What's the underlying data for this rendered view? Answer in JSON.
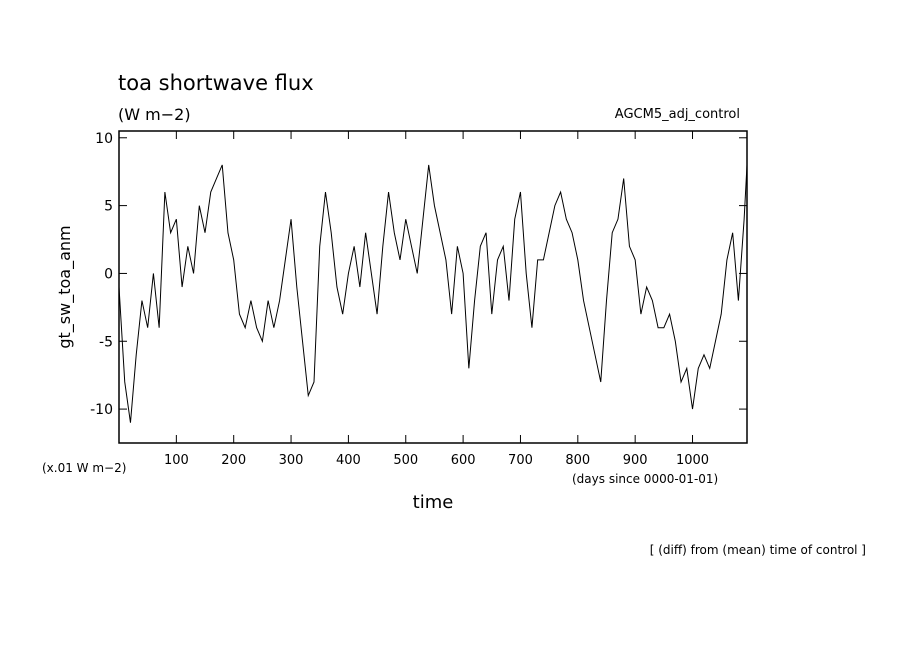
{
  "chart_data": {
    "type": "line",
    "title": "toa shortwave flux",
    "subtitle": "(W m−2)",
    "run_label": "AGCM5_adj_control",
    "y_label": "gt_sw_toa_anm",
    "y_units": "(x.01 W m−2)",
    "x_label": "time",
    "x_units": "(days since 0000-01-01)",
    "footer": "[ (diff) from (mean) time of control ]",
    "x": [
      0,
      10,
      20,
      30,
      40,
      50,
      60,
      70,
      80,
      90,
      100,
      110,
      120,
      130,
      140,
      150,
      160,
      170,
      180,
      190,
      200,
      210,
      220,
      230,
      240,
      250,
      260,
      270,
      280,
      290,
      300,
      310,
      320,
      330,
      340,
      350,
      360,
      370,
      380,
      390,
      400,
      410,
      420,
      430,
      440,
      450,
      460,
      470,
      480,
      490,
      500,
      510,
      520,
      530,
      540,
      550,
      560,
      570,
      580,
      590,
      600,
      610,
      620,
      630,
      640,
      650,
      660,
      670,
      680,
      690,
      700,
      710,
      720,
      730,
      740,
      750,
      760,
      770,
      780,
      790,
      800,
      810,
      820,
      830,
      840,
      850,
      860,
      870,
      880,
      890,
      900,
      910,
      920,
      930,
      940,
      950,
      960,
      970,
      980,
      990,
      1000,
      1010,
      1020,
      1030,
      1040,
      1050,
      1060,
      1070,
      1080,
      1090,
      1095
    ],
    "series": [
      {
        "name": "gt_sw_toa_anm",
        "color": "#000000",
        "values": [
          -1,
          -8,
          -11,
          -6,
          -2,
          -4,
          0,
          -4,
          6,
          3,
          4,
          -1,
          2,
          0,
          5,
          3,
          6,
          7,
          8,
          3,
          1,
          -3,
          -4,
          -2,
          -4,
          -5,
          -2,
          -4,
          -2,
          1,
          4,
          -1,
          -5,
          -9,
          -8,
          2,
          6,
          3,
          -1,
          -3,
          0,
          2,
          -1,
          3,
          0,
          -3,
          2,
          6,
          3,
          1,
          4,
          2,
          0,
          4,
          8,
          5,
          3,
          1,
          -3,
          2,
          0,
          -7,
          -2,
          2,
          3,
          -3,
          1,
          2,
          -2,
          4,
          6,
          0,
          -4,
          1,
          1,
          3,
          5,
          6,
          4,
          3,
          1,
          -2,
          -4,
          -6,
          -8,
          -2,
          3,
          4,
          7,
          2,
          1,
          -3,
          -1,
          -2,
          -4,
          -4,
          -3,
          -5,
          -8,
          -7,
          -10,
          -7,
          -6,
          -7,
          -5,
          -3,
          1,
          3,
          -2,
          4,
          8
        ]
      }
    ],
    "xlim": [
      0,
      1095
    ],
    "ylim": [
      -12.5,
      10.5
    ],
    "xticks": [
      100,
      200,
      300,
      400,
      500,
      600,
      700,
      800,
      900,
      1000
    ],
    "yticks": [
      -10,
      -5,
      0,
      5,
      10
    ]
  }
}
